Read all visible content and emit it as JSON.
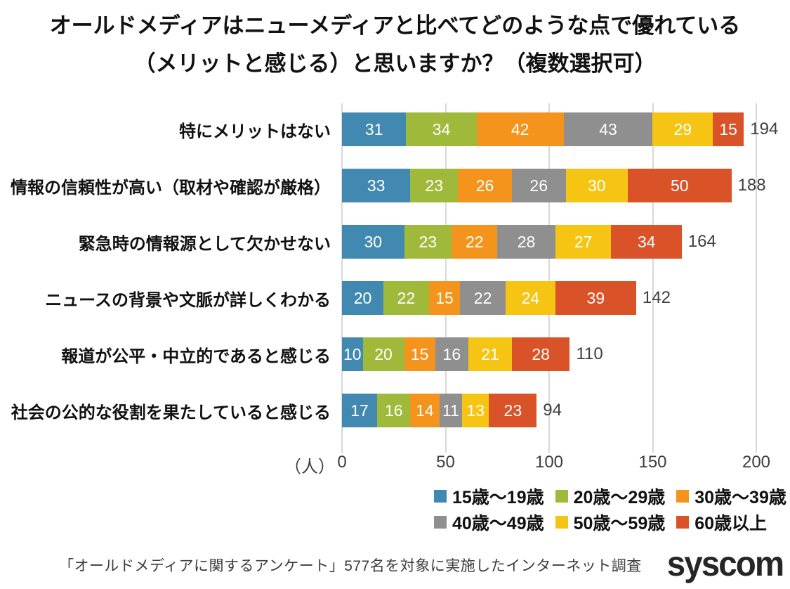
{
  "title": {
    "line1": "オールドメディアはニューメディアと比べてどのような点で優れている",
    "line2": "（メリットと感じる）と思いますか？（複数選択可）"
  },
  "chart_data": {
    "type": "bar",
    "orientation": "horizontal",
    "stacked": true,
    "title_lines": [
      "オールドメディアはニューメディアと比べてどのような点で優れている",
      "（メリットと感じる）と思いますか？（複数選択可）"
    ],
    "categories": [
      "特にメリットはない",
      "情報の信頼性が高い（取材や確認が厳格）",
      "緊急時の情報源として欠かせない",
      "ニュースの背景や文脈が詳しくわかる",
      "報道が公平・中立的であると感じる",
      "社会の公的な役割を果たしていると感じる"
    ],
    "series": [
      {
        "name": "15歳〜19歳",
        "color": "#4289B2",
        "values": [
          31,
          33,
          30,
          20,
          10,
          17
        ]
      },
      {
        "name": "20歳〜29歳",
        "color": "#9FBA3B",
        "values": [
          34,
          23,
          23,
          22,
          20,
          16
        ]
      },
      {
        "name": "30歳〜39歳",
        "color": "#F5941D",
        "values": [
          42,
          26,
          22,
          15,
          15,
          14
        ]
      },
      {
        "name": "40歳〜49歳",
        "color": "#8F8F8F",
        "values": [
          43,
          26,
          28,
          22,
          16,
          11
        ]
      },
      {
        "name": "50歳〜59歳",
        "color": "#F6C514",
        "values": [
          29,
          30,
          27,
          24,
          21,
          13
        ]
      },
      {
        "name": "60歳以上",
        "color": "#DA5328",
        "values": [
          15,
          50,
          34,
          39,
          28,
          23
        ]
      }
    ],
    "totals": [
      194,
      188,
      164,
      142,
      110,
      94
    ],
    "x_ticks": [
      0,
      50,
      100,
      150,
      200
    ],
    "xlim": [
      0,
      200
    ],
    "x_unit_label": "（人）",
    "grid": true,
    "gridline_color": "#d9d9d9",
    "legend_position": "bottom-right"
  },
  "footer": {
    "note": "「オールドメディアに関するアンケート」577名を対象に実施したインターネット調査",
    "logo_text": "syscom"
  }
}
